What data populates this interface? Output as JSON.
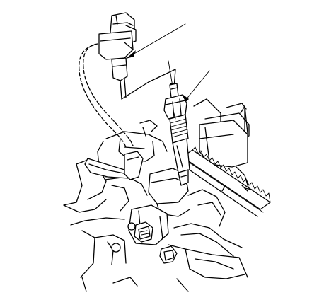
{
  "diagram": {
    "kind": "line-art-technical-illustration",
    "background_color": "#ffffff",
    "line_color": "#000000",
    "components": [
      "connector-plug",
      "wire-harness",
      "glow-plug",
      "timing-belt",
      "engine-head",
      "hex-nut",
      "bracket-clamp"
    ],
    "callouts": [
      {
        "name": "leader-arrow-connector",
        "points_to": "connector-plug"
      },
      {
        "name": "leader-arrow-glow-plug-tip",
        "points_to": "glow-plug"
      },
      {
        "name": "leader-arrow-glow-plug-nut",
        "points_to": "glow-plug"
      }
    ]
  }
}
